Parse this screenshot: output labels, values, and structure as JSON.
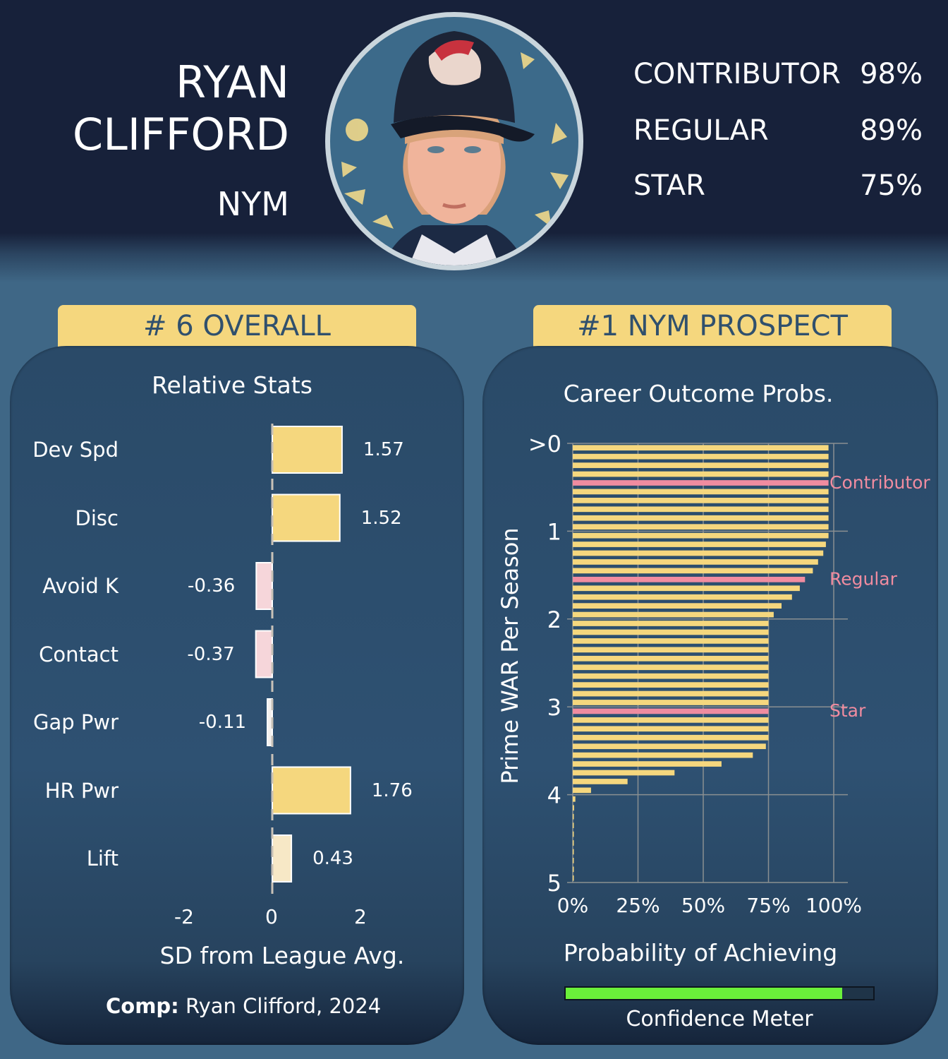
{
  "player": {
    "first_name": "RYAN",
    "last_name": "CLIFFORD",
    "team": "NYM"
  },
  "outcomes": [
    {
      "label": "CONTRIBUTOR",
      "value": "98%"
    },
    {
      "label": "REGULAR",
      "value": "89%"
    },
    {
      "label": "STAR",
      "value": "75%"
    }
  ],
  "rank_overall": "# 6 OVERALL",
  "rank_team": "#1 NYM PROSPECT",
  "comp": {
    "label": "Comp:",
    "value": "Ryan Clifford, 2024"
  },
  "confidence": {
    "label": "Confidence Meter",
    "level": 0.9
  },
  "colors": {
    "navy": "#17213a",
    "gold": "#f5d77e",
    "pink": "#f08ca0",
    "pale_pink": "#f6d6da",
    "cream": "#f7e8c6",
    "green": "#6af03a"
  },
  "chart_data": [
    {
      "type": "bar",
      "orientation": "horizontal",
      "title": "Relative Stats",
      "xlabel": "SD from League Avg.",
      "xlim": [
        -2,
        2
      ],
      "x_ticks": [
        "-2",
        "0",
        "2"
      ],
      "categories": [
        "Dev Spd",
        "Disc",
        "Avoid K",
        "Contact",
        "Gap Pwr",
        "HR Pwr",
        "Lift"
      ],
      "values": [
        1.57,
        1.52,
        -0.36,
        -0.37,
        -0.11,
        1.76,
        0.43
      ],
      "value_labels": [
        "1.57",
        "1.52",
        "-0.36",
        "-0.37",
        "-0.11",
        "1.76",
        "0.43"
      ]
    },
    {
      "type": "bar",
      "orientation": "horizontal",
      "title": "Career Outcome Probs.",
      "xlabel": "Probability of Achieving",
      "ylabel": "Prime WAR Per Season",
      "xlim": [
        0,
        1
      ],
      "ylim": [
        0,
        5
      ],
      "x_ticks": [
        "0%",
        "25%",
        "50%",
        "75%",
        "100%"
      ],
      "y_ticks": [
        ">0",
        "1",
        "2",
        "3",
        "4",
        "5"
      ],
      "grid": true,
      "y": [
        0,
        0.1,
        0.2,
        0.3,
        0.4,
        0.5,
        0.6,
        0.7,
        0.8,
        0.9,
        1.0,
        1.1,
        1.2,
        1.3,
        1.4,
        1.5,
        1.6,
        1.7,
        1.8,
        1.9,
        2.0,
        2.1,
        2.2,
        2.3,
        2.4,
        2.5,
        2.6,
        2.7,
        2.8,
        2.9,
        3.0,
        3.1,
        3.2,
        3.3,
        3.4,
        3.5,
        3.6,
        3.7,
        3.8,
        3.9,
        4.0,
        4.1,
        4.2,
        4.3,
        4.4,
        4.5,
        4.6,
        4.7,
        4.8,
        4.9
      ],
      "values": [
        0.98,
        0.98,
        0.98,
        0.98,
        0.98,
        0.98,
        0.98,
        0.98,
        0.98,
        0.98,
        0.98,
        0.97,
        0.96,
        0.94,
        0.92,
        0.89,
        0.87,
        0.84,
        0.8,
        0.77,
        0.75,
        0.75,
        0.75,
        0.75,
        0.75,
        0.75,
        0.75,
        0.75,
        0.75,
        0.75,
        0.75,
        0.75,
        0.75,
        0.75,
        0.74,
        0.69,
        0.57,
        0.39,
        0.21,
        0.07,
        0.01,
        0.005,
        0.003,
        0.002,
        0.002,
        0.002,
        0.002,
        0.002,
        0.002,
        0.002
      ],
      "highlights": [
        {
          "label": "Contributor",
          "y": 0.4
        },
        {
          "label": "Regular",
          "y": 1.5
        },
        {
          "label": "Star",
          "y": 3.0
        }
      ]
    }
  ]
}
